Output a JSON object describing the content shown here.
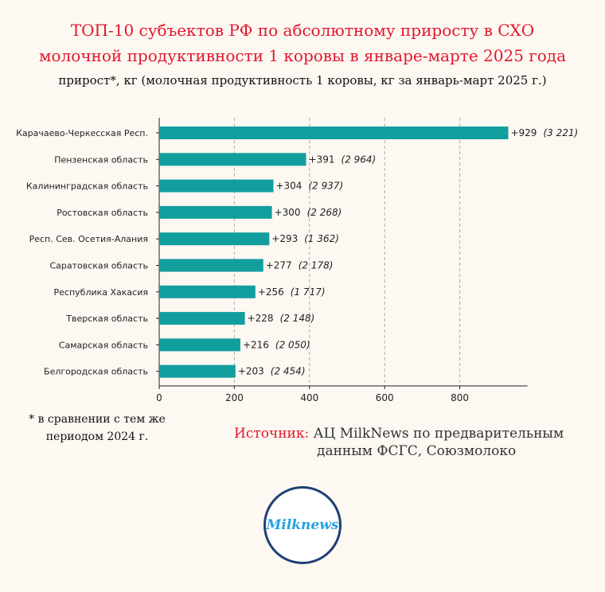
{
  "header": {
    "title_line1": "ТОП-10 субъектов РФ по абсолютному приросту в СХО",
    "title_line2": "молочной продуктивности 1 коровы в январе-марте 2025 года",
    "subtitle": "прирост*, кг (молочная продуктивность 1 коровы, кг за январь-март 2025 г.)"
  },
  "chart_data": {
    "type": "bar",
    "orientation": "horizontal",
    "categories": [
      "Карачаево-Черкесская Респ.",
      "Пензенская область",
      "Калининградская область",
      "Ростовская область",
      "Респ. Сев. Осетия-Алания",
      "Саратовская область",
      "Республика Хакасия",
      "Тверская область",
      "Самарская область",
      "Белгородская область"
    ],
    "values": [
      929,
      391,
      304,
      300,
      293,
      277,
      256,
      228,
      216,
      203
    ],
    "value_labels": [
      "+929",
      "+391",
      "+304",
      "+300",
      "+293",
      "+277",
      "+256",
      "+228",
      "+216",
      "+203"
    ],
    "secondary_labels": [
      "(3 221)",
      "(2 964)",
      "(2 937)",
      "(2 268)",
      "(1 362)",
      "(2 178)",
      "(1 717)",
      "(2 148)",
      "(2 050)",
      "(2 454)"
    ],
    "xlim": [
      0,
      980
    ],
    "xticks": [
      0,
      200,
      400,
      600,
      800
    ],
    "grid": "vertical dashed",
    "bar_color": "#139e9e"
  },
  "footnote": {
    "line1": "* в сравнении с тем же",
    "line2": "периодом 2024 г."
  },
  "source": {
    "label": "Источник:",
    "text_line1": "АЦ MilkNews по предварительным",
    "text_line2": "данным ФСГС, Союзмолоко"
  },
  "logo": {
    "text": "Milknews"
  }
}
